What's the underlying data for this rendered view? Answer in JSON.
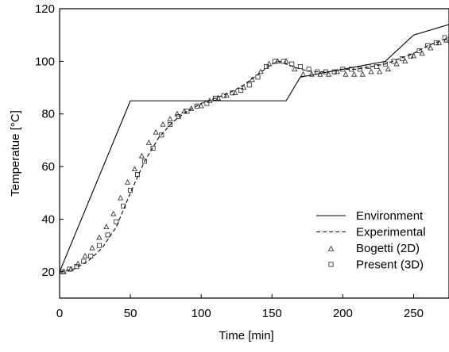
{
  "chart_data": {
    "type": "line",
    "title": "",
    "xlabel": "Time [min]",
    "ylabel": "Temperatue [°C]",
    "xlim": [
      0,
      275
    ],
    "ylim": [
      10,
      120
    ],
    "xticks": [
      0,
      50,
      100,
      150,
      200,
      250
    ],
    "yticks": [
      20,
      40,
      60,
      80,
      100,
      120
    ],
    "grid": false,
    "legend_position": "bottom-right",
    "series": [
      {
        "name": "Environment",
        "style": "solid-line",
        "x": [
          0,
          50,
          160,
          170,
          230,
          250,
          275
        ],
        "y": [
          20,
          85,
          85,
          94,
          100,
          110,
          114
        ]
      },
      {
        "name": "Experimental",
        "style": "dashed-line",
        "x": [
          0,
          10,
          20,
          30,
          40,
          50,
          60,
          70,
          80,
          90,
          100,
          110,
          120,
          130,
          140,
          150,
          155,
          160,
          170,
          180,
          190,
          200,
          210,
          220,
          230,
          240,
          250,
          260,
          275
        ],
        "y": [
          20,
          21,
          24,
          29,
          37,
          50,
          62,
          71,
          77,
          81,
          84,
          86,
          88,
          91,
          95,
          99,
          100,
          99,
          97,
          96,
          96,
          97,
          97,
          98,
          99,
          101,
          103,
          106,
          109
        ]
      },
      {
        "name": "Bogetti (2D)",
        "style": "triangle-markers",
        "x": [
          3,
          8,
          13,
          18,
          23,
          28,
          33,
          38,
          43,
          48,
          53,
          58,
          63,
          68,
          73,
          78,
          83,
          88,
          93,
          100,
          106,
          112,
          118,
          124,
          130,
          136,
          142,
          148,
          154,
          160,
          166,
          172,
          178,
          184,
          190,
          196,
          202,
          208,
          214,
          220,
          226,
          232,
          238,
          244,
          250,
          256,
          262,
          268,
          273
        ],
        "y": [
          20,
          21,
          23,
          26,
          29,
          33,
          37,
          42,
          48,
          54,
          59,
          64,
          69,
          73,
          76,
          78,
          80,
          81,
          82,
          83,
          85,
          86,
          87,
          88,
          90,
          93,
          96,
          99,
          100,
          100,
          97,
          95,
          95,
          95,
          95,
          96,
          95,
          95,
          95,
          96,
          96,
          97,
          99,
          100,
          102,
          103,
          105,
          107,
          108
        ]
      },
      {
        "name": "Present (3D)",
        "style": "square-markers",
        "x": [
          2,
          7,
          12,
          17,
          22,
          28,
          34,
          40,
          45,
          50,
          55,
          60,
          66,
          72,
          78,
          84,
          90,
          97,
          104,
          110,
          116,
          122,
          128,
          134,
          140,
          146,
          152,
          158,
          164,
          170,
          176,
          182,
          188,
          194,
          200,
          206,
          212,
          218,
          224,
          230,
          236,
          242,
          248,
          254,
          260,
          266,
          272
        ],
        "y": [
          20,
          21,
          22,
          24,
          26,
          30,
          34,
          39,
          45,
          51,
          57,
          62,
          67,
          72,
          76,
          79,
          81,
          83,
          84,
          86,
          87,
          88,
          89,
          91,
          94,
          98,
          100,
          100,
          99,
          98,
          97,
          96,
          96,
          96,
          97,
          97,
          97,
          98,
          98,
          99,
          100,
          101,
          102,
          104,
          106,
          107,
          109
        ]
      }
    ]
  }
}
